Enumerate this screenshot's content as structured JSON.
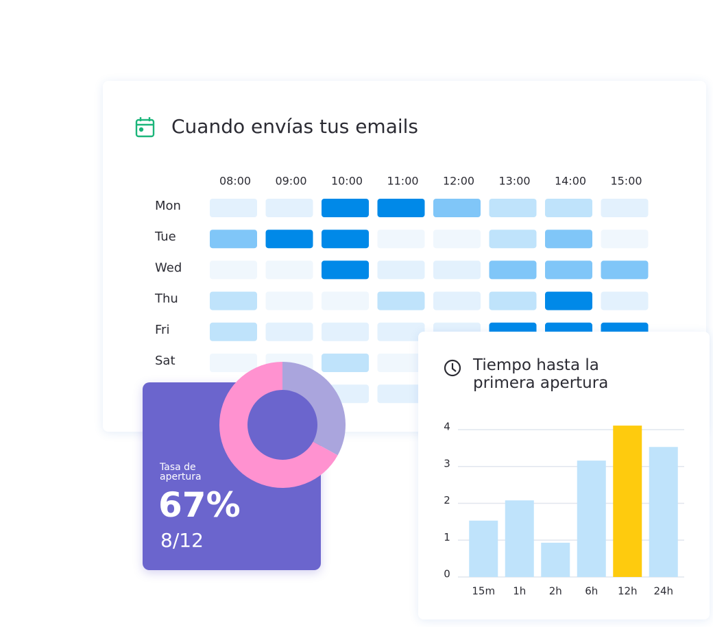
{
  "chart_data": [
    {
      "type": "heatmap",
      "title": "Cuando envías tus emails",
      "x_categories": [
        "08:00",
        "09:00",
        "10:00",
        "11:00",
        "12:00",
        "13:00",
        "14:00",
        "15:00"
      ],
      "y_categories": [
        "Mon",
        "Tue",
        "Wed",
        "Thu",
        "Fri",
        "Sat",
        null
      ],
      "values": [
        [
          1,
          1,
          4,
          4,
          3,
          2,
          2,
          1
        ],
        [
          3,
          4,
          4,
          0,
          0,
          2,
          3,
          0
        ],
        [
          0,
          0,
          4,
          1,
          1,
          3,
          3,
          3
        ],
        [
          2,
          0,
          0,
          2,
          1,
          2,
          4,
          1
        ],
        [
          2,
          1,
          1,
          1,
          1,
          4,
          4,
          4
        ],
        [
          0,
          0,
          2,
          0,
          null,
          null,
          null,
          null
        ],
        [
          null,
          null,
          1,
          1,
          null,
          null,
          null,
          null
        ]
      ],
      "colorscale": [
        "#f0f7fd",
        "#e3f1fd",
        "#bfe3fb",
        "#80c6f8",
        "#0089e8"
      ]
    },
    {
      "type": "pie",
      "title": "Tasa de apertura",
      "subtitle": "8/12",
      "values": [
        33,
        67
      ],
      "value_labels": [
        null,
        "67%"
      ],
      "colors": [
        "#aaa5dd",
        "#ff92d0"
      ]
    },
    {
      "type": "bar",
      "title": "Tiempo hasta la primera apertura",
      "categories": [
        "15m",
        "1h",
        "2h",
        "6h",
        "12h",
        "24h"
      ],
      "values": [
        1.53,
        2.08,
        0.93,
        3.16,
        4.11,
        3.53
      ],
      "colors": [
        "#bfe3fb",
        "#bfe3fb",
        "#bfe3fb",
        "#bfe3fb",
        "#fecb0e",
        "#bfe3fb"
      ],
      "ylim": [
        0,
        4.2
      ],
      "yticks": [
        0,
        1,
        2,
        3,
        4
      ],
      "grid": true
    }
  ]
}
